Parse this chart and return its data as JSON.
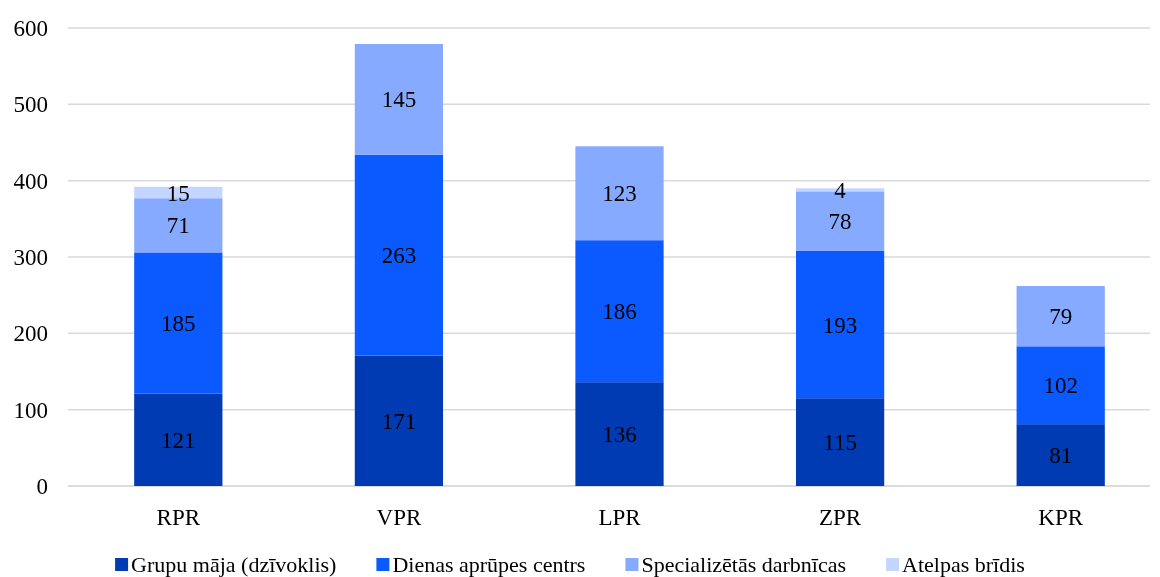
{
  "chart_data": {
    "type": "bar",
    "stacked": true,
    "categories": [
      "RPR",
      "VPR",
      "LPR",
      "ZPR",
      "KPR"
    ],
    "series": [
      {
        "name": "Grupu māja (dzīvoklis)",
        "color": "#003bb3",
        "values": [
          121,
          171,
          136,
          115,
          81
        ]
      },
      {
        "name": "Dienas aprūpes centrs",
        "color": "#0a5aff",
        "values": [
          185,
          263,
          186,
          193,
          102
        ]
      },
      {
        "name": "Specializētās darbnīcas",
        "color": "#85aaff",
        "values": [
          71,
          145,
          123,
          78,
          79
        ]
      },
      {
        "name": "Atelpas brīdis",
        "color": "#c4d6ff",
        "values": [
          15,
          null,
          null,
          4,
          null
        ]
      }
    ],
    "ylim": [
      0,
      600
    ],
    "yticks": [
      0,
      100,
      200,
      300,
      400,
      500,
      600
    ],
    "grid": "y",
    "legend": "bottom",
    "data_labels": true
  }
}
